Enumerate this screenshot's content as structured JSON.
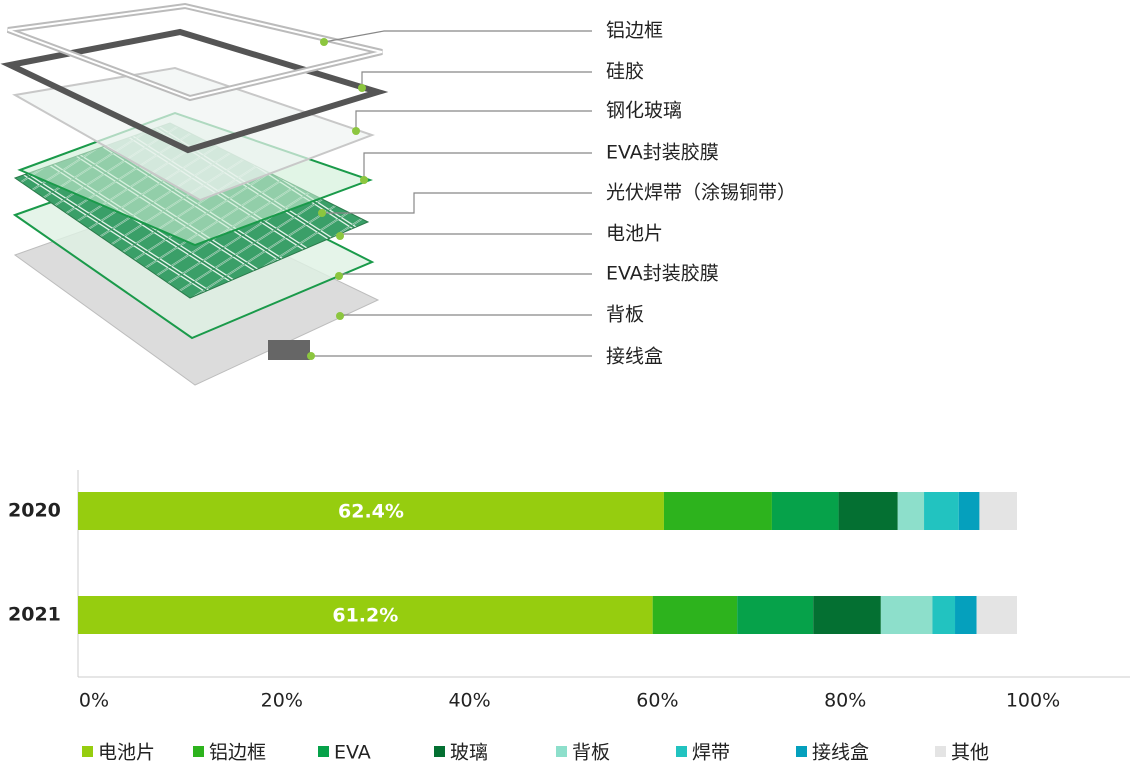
{
  "diagram": {
    "labels": [
      "铝边框",
      "硅胶",
      "钢化玻璃",
      "EVA封装胶膜",
      "光伏焊带（涂锡铜带）",
      "电池片",
      "EVA封装胶膜",
      "背板",
      "接线盒"
    ]
  },
  "chart_data": {
    "type": "stacked-bar-horizontal",
    "categories": [
      "2020",
      "2021"
    ],
    "series": [
      {
        "name": "电池片",
        "color": "#96cd0f",
        "values": [
          62.4,
          61.2
        ],
        "value_labels": [
          "62.4%",
          "61.2%"
        ]
      },
      {
        "name": "铝边框",
        "color": "#2db31d",
        "values": [
          11.5,
          9.0
        ]
      },
      {
        "name": "EVA",
        "color": "#06a24a",
        "values": [
          7.1,
          8.1
        ]
      },
      {
        "name": "玻璃",
        "color": "#047032",
        "values": [
          6.3,
          7.2
        ]
      },
      {
        "name": "背板",
        "color": "#8ddfcb",
        "values": [
          2.8,
          5.5
        ]
      },
      {
        "name": "焊带",
        "color": "#22c3c0",
        "values": [
          3.7,
          2.4
        ]
      },
      {
        "name": "接线盒",
        "color": "#05a0bd",
        "values": [
          2.2,
          2.3
        ]
      },
      {
        "name": "其他",
        "color": "#e4e4e4",
        "values": [
          4.0,
          4.3
        ]
      }
    ],
    "xlim": [
      0,
      100
    ],
    "xticks": [
      {
        "value": 0,
        "label": "0%"
      },
      {
        "value": 20,
        "label": "20%"
      },
      {
        "value": 40,
        "label": "40%"
      },
      {
        "value": 60,
        "label": "60%"
      },
      {
        "value": 80,
        "label": "80%"
      },
      {
        "value": 100,
        "label": "100%"
      }
    ]
  }
}
